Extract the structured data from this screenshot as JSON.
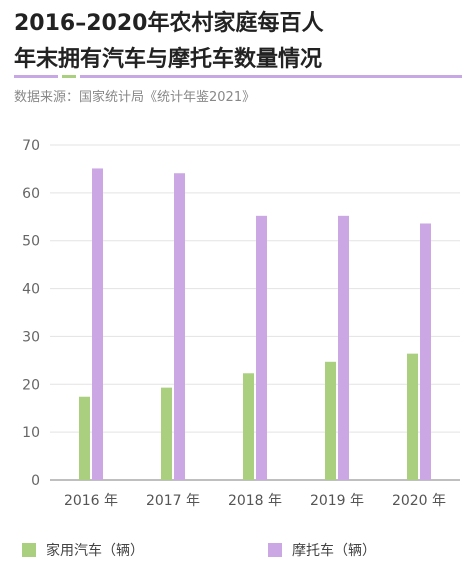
{
  "header": {
    "title_line1": "2016–2020年农村家庭每百人",
    "title_line2": "年末拥有汽车与摩托车数量情况",
    "source": "数据来源：国家统计局《统计年鉴2021》"
  },
  "colors": {
    "car": "#a9cf7f",
    "moto": "#cba7e3",
    "rule": "#c8a8e4",
    "rule_accent": "#a9cf7f",
    "axis": "#999999",
    "grid": "#e3e3e3"
  },
  "chart_data": {
    "type": "bar",
    "title": "2016–2020年农村家庭每百人年末拥有汽车与摩托车数量情况",
    "categories": [
      "2016 年",
      "2017 年",
      "2018 年",
      "2019 年",
      "2020 年"
    ],
    "series": [
      {
        "name": "家用汽车（辆）",
        "values": [
          17.4,
          19.3,
          22.3,
          24.7,
          26.4
        ]
      },
      {
        "name": "摩托车（辆）",
        "values": [
          65.1,
          64.1,
          55.2,
          55.2,
          53.6
        ]
      }
    ],
    "yticks": [
      0,
      10,
      20,
      30,
      40,
      50,
      60,
      70
    ],
    "ylim": [
      0,
      70
    ],
    "xlabel": "",
    "ylabel": "",
    "grid": true,
    "legend": "bottom"
  }
}
